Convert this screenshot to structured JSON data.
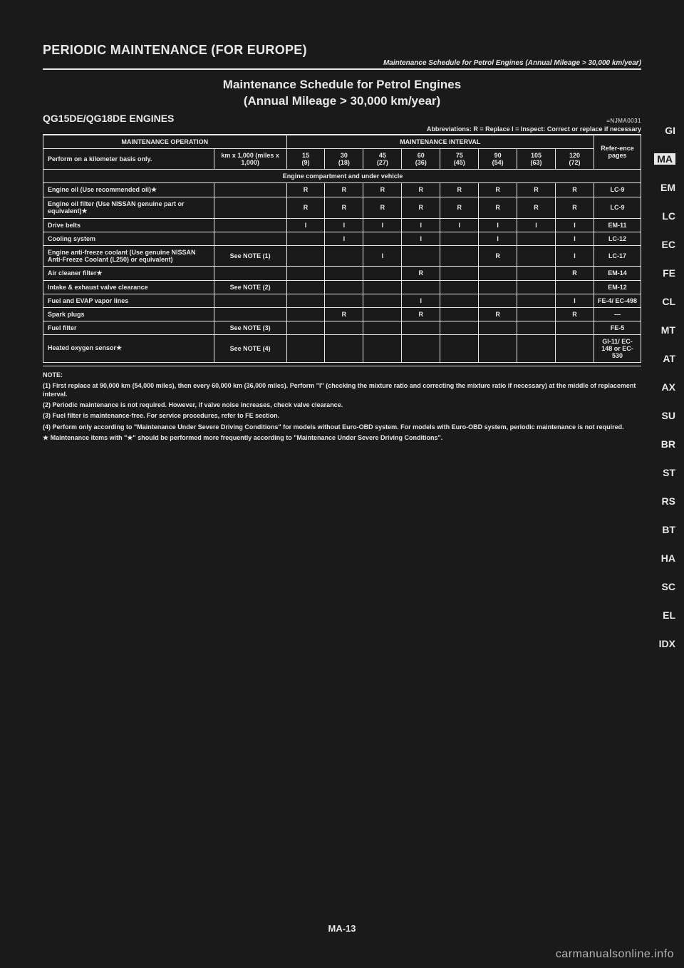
{
  "doc": {
    "title": "PERIODIC MAINTENANCE (FOR EUROPE)",
    "subtitle": "Maintenance Schedule for Petrol Engines (Annual Mileage > 30,000 km/year)",
    "section_title_l1": "Maintenance Schedule for Petrol Engines",
    "section_title_l2": "(Annual Mileage > 30,000 km/year)",
    "engine": "QG15DE/QG18DE ENGINES",
    "ref_code": "=NJMA0031",
    "legend": "Abbreviations: R = Replace     I = Inspect: Correct or replace if necessary",
    "page_num": "MA-13",
    "watermark": "carmanualsonline.info"
  },
  "table": {
    "hdr": {
      "op": "MAINTENANCE OPERATION",
      "interval": "MAINTENANCE INTERVAL",
      "ref": "Refer-ence pages",
      "basis": "Perform on a kilometer basis only.",
      "unit": "km x 1,000 (miles x 1,000)"
    },
    "cols": [
      {
        "km": "15",
        "mi": "(9)"
      },
      {
        "km": "30",
        "mi": "(18)"
      },
      {
        "km": "45",
        "mi": "(27)"
      },
      {
        "km": "60",
        "mi": "(36)"
      },
      {
        "km": "75",
        "mi": "(45)"
      },
      {
        "km": "90",
        "mi": "(54)"
      },
      {
        "km": "105",
        "mi": "(63)"
      },
      {
        "km": "120",
        "mi": "(72)"
      }
    ],
    "section1": "Engine compartment and under vehicle",
    "rows": [
      {
        "name": "Engine oil (Use recommended oil)★",
        "note": "",
        "c": [
          "R",
          "R",
          "R",
          "R",
          "R",
          "R",
          "R",
          "R"
        ],
        "ref": "LC-9"
      },
      {
        "name": "Engine oil filter (Use NISSAN genuine part or equivalent)★",
        "note": "",
        "c": [
          "R",
          "R",
          "R",
          "R",
          "R",
          "R",
          "R",
          "R"
        ],
        "ref": "LC-9"
      },
      {
        "name": "Drive belts",
        "note": "",
        "c": [
          "I",
          "I",
          "I",
          "I",
          "I",
          "I",
          "I",
          "I"
        ],
        "ref": "EM-11"
      },
      {
        "name": "Cooling system",
        "note": "",
        "c": [
          "",
          "I",
          "",
          "I",
          "",
          "I",
          "",
          "I"
        ],
        "ref": "LC-12"
      },
      {
        "name": "Engine anti-freeze coolant (Use genuine NISSAN Anti-Freeze Coolant (L250) or equivalent)",
        "note": "See NOTE (1)",
        "c": [
          "",
          "",
          "I",
          "",
          "",
          "R",
          "",
          "I"
        ],
        "ref": "LC-17"
      },
      {
        "name": "Air cleaner filter★",
        "note": "",
        "c": [
          "",
          "",
          "",
          "R",
          "",
          "",
          "",
          "R"
        ],
        "ref": "EM-14"
      },
      {
        "name": "Intake & exhaust valve clearance",
        "note": "See NOTE (2)",
        "c": [
          "",
          "",
          "",
          "",
          "",
          "",
          "",
          ""
        ],
        "ref": "EM-12"
      },
      {
        "name": "Fuel and EVAP vapor lines",
        "note": "",
        "c": [
          "",
          "",
          "",
          "I",
          "",
          "",
          "",
          "I"
        ],
        "ref": "FE-4/ EC-498"
      },
      {
        "name": "Spark plugs",
        "note": "",
        "c": [
          "",
          "R",
          "",
          "R",
          "",
          "R",
          "",
          "R"
        ],
        "ref": "—"
      },
      {
        "name": "Fuel filter",
        "note": "See NOTE (3)",
        "c": [
          "",
          "",
          "",
          "",
          "",
          "",
          "",
          ""
        ],
        "ref": "FE-5"
      },
      {
        "name": "Heated oxygen sensor★",
        "note": "See NOTE (4)",
        "c": [
          "",
          "",
          "",
          "",
          "",
          "",
          "",
          ""
        ],
        "ref": "GI-11/ EC-148 or EC-530"
      }
    ]
  },
  "notes": {
    "head": "NOTE:",
    "n1": "(1) First replace at 90,000 km (54,000 miles), then every 60,000 km (36,000 miles). Perform \"I\" (checking the mixture ratio and correcting the mixture ratio if necessary) at the middle of replacement interval.",
    "n2": "(2) Periodic maintenance is not required. However, if valve noise increases, check valve clearance.",
    "n3": "(3) Fuel filter is maintenance-free. For service procedures, refer to FE section.",
    "n4": "(4) Perform only according to \"Maintenance Under Severe Driving Conditions\" for models without Euro-OBD system. For models with Euro-OBD system, periodic maintenance is not required.",
    "star": "★ Maintenance items with \"★\" should be performed more frequently according to \"Maintenance Under Severe Driving Conditions\"."
  },
  "tabs": [
    "GI",
    "MA",
    "EM",
    "LC",
    "EC",
    "FE",
    "CL",
    "MT",
    "AT",
    "AX",
    "SU",
    "BR",
    "ST",
    "RS",
    "BT",
    "HA",
    "SC",
    "EL",
    "IDX"
  ],
  "active_tab_index": 1
}
